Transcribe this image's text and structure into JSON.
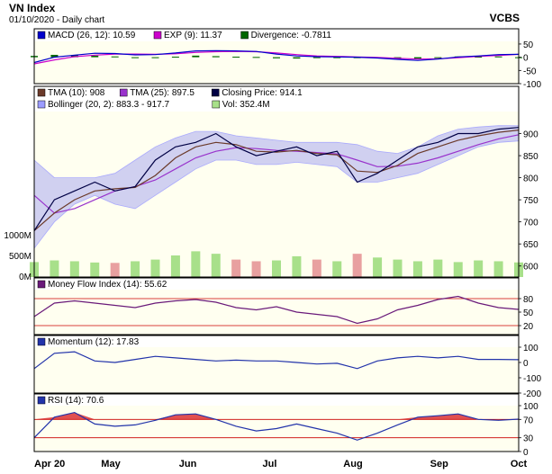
{
  "header": {
    "title": "VN Index",
    "subtitle": "01/10/2020 - Daily chart",
    "brand": "VCBS"
  },
  "colors": {
    "plot_bg": "#fffff0",
    "frame": "#000000",
    "header_bg": "#ffffff",
    "macd": "#0000cc",
    "exp": "#cc00cc",
    "divergence": "#006600",
    "tma10": "#6b3a2a",
    "tma25": "#9933cc",
    "close": "#000044",
    "bollinger_fill": "#c8c8f0",
    "bollinger_line": "#9c9cff",
    "vol_up": "#a8e08a",
    "vol_down": "#e8a0a0",
    "mfi_line": "#6a1a7a",
    "ref_line": "#cc0000",
    "momentum": "#2233aa",
    "rsi_line": "#2233aa",
    "rsi_fill": "#e05050"
  },
  "chart_data": [
    {
      "name": "macd-panel",
      "type": "line",
      "legend": [
        {
          "label": "MACD (26, 12): 10.59",
          "color": "#0000cc"
        },
        {
          "label": "EXP (9): 11.37",
          "color": "#cc00cc"
        },
        {
          "label": "Divergence: -0.7811",
          "color": "#006600"
        }
      ],
      "ylim": [
        -100,
        60
      ],
      "yticks": [
        50,
        0,
        -50,
        -100
      ],
      "series": [
        {
          "name": "MACD",
          "values": [
            -20,
            0,
            8,
            15,
            14,
            9,
            10,
            16,
            24,
            25,
            24,
            22,
            12,
            5,
            2,
            1,
            0,
            -3,
            -8,
            -12,
            -7,
            1,
            5,
            10,
            11
          ]
        },
        {
          "name": "EXP",
          "values": [
            -25,
            -10,
            2,
            8,
            12,
            12,
            11,
            13,
            18,
            21,
            22,
            21,
            16,
            10,
            5,
            3,
            1,
            -1,
            -4,
            -7,
            -6,
            -2,
            3,
            7,
            11
          ]
        }
      ],
      "divergence": [
        5,
        9,
        8,
        6,
        3,
        -1,
        -1,
        2,
        6,
        4,
        2,
        1,
        -4,
        -5,
        -3,
        -2,
        -1,
        -2,
        -4,
        -5,
        -1,
        3,
        2,
        3,
        -1
      ]
    },
    {
      "name": "price-panel",
      "type": "line",
      "legend": [
        {
          "label": "TMA (10): 908",
          "color": "#6b3a2a"
        },
        {
          "label": "TMA (25): 897.5",
          "color": "#9933cc"
        },
        {
          "label": "Closing Price: 914.1",
          "color": "#000044"
        },
        {
          "label": "Bollinger (20, 2): 883.3 - 917.7",
          "color": "#9c9cff"
        },
        {
          "label": "Vol: 352.4M",
          "color": "#a8e08a"
        }
      ],
      "ylim": [
        575,
        950
      ],
      "yticks": [
        900,
        850,
        800,
        750,
        700,
        650,
        600
      ],
      "vol_ticks": [
        "1000M",
        "500M",
        "0M"
      ],
      "vol_max": 1300,
      "series": [
        {
          "name": "Close",
          "values": [
            680,
            750,
            770,
            790,
            770,
            780,
            840,
            870,
            880,
            900,
            870,
            850,
            860,
            870,
            850,
            860,
            790,
            810,
            840,
            870,
            880,
            900,
            900,
            910,
            914
          ]
        },
        {
          "name": "TMA10",
          "values": [
            680,
            720,
            750,
            770,
            775,
            778,
            805,
            845,
            870,
            880,
            875,
            860,
            858,
            862,
            855,
            852,
            815,
            812,
            828,
            855,
            870,
            885,
            895,
            903,
            908
          ]
        },
        {
          "name": "TMA25",
          "values": [
            760,
            720,
            730,
            750,
            770,
            780,
            795,
            820,
            845,
            860,
            868,
            866,
            862,
            860,
            857,
            854,
            840,
            825,
            826,
            833,
            845,
            860,
            875,
            888,
            897.5
          ]
        },
        {
          "name": "BB Upper",
          "values": [
            840,
            800,
            800,
            800,
            810,
            840,
            870,
            890,
            905,
            905,
            895,
            890,
            885,
            880,
            880,
            880,
            875,
            860,
            855,
            870,
            895,
            910,
            915,
            918,
            917.7
          ]
        },
        {
          "name": "BB Lower",
          "values": [
            640,
            700,
            740,
            760,
            740,
            730,
            760,
            790,
            820,
            840,
            840,
            830,
            830,
            835,
            830,
            825,
            790,
            790,
            800,
            810,
            830,
            850,
            870,
            880,
            883.3
          ]
        }
      ],
      "volume": [
        360,
        400,
        380,
        350,
        340,
        380,
        420,
        520,
        620,
        560,
        420,
        380,
        400,
        500,
        420,
        380,
        560,
        470,
        420,
        380,
        420,
        360,
        400,
        380,
        352
      ]
    },
    {
      "name": "mfi-panel",
      "type": "line",
      "legend": [
        {
          "label": "Money Flow Index (14): 55.62",
          "color": "#6a1a7a"
        }
      ],
      "ylim": [
        0,
        100
      ],
      "yticks": [
        80,
        50,
        20
      ],
      "ref": [
        80,
        20
      ],
      "series": [
        {
          "name": "MFI",
          "values": [
            40,
            70,
            75,
            70,
            65,
            60,
            70,
            75,
            78,
            72,
            60,
            55,
            62,
            50,
            45,
            40,
            25,
            35,
            55,
            65,
            78,
            85,
            70,
            60,
            56
          ]
        }
      ]
    },
    {
      "name": "momentum-panel",
      "type": "line",
      "legend": [
        {
          "label": "Momentum (12): 17.83",
          "color": "#2233aa"
        }
      ],
      "ylim": [
        -200,
        100
      ],
      "yticks": [
        100,
        0,
        -100,
        -200
      ],
      "series": [
        {
          "name": "Momentum",
          "values": [
            -40,
            60,
            70,
            10,
            0,
            20,
            40,
            30,
            20,
            10,
            15,
            10,
            10,
            0,
            -10,
            -5,
            -40,
            10,
            30,
            40,
            30,
            40,
            20,
            20,
            18
          ]
        }
      ]
    },
    {
      "name": "rsi-panel",
      "type": "line",
      "legend": [
        {
          "label": "RSI (14): 70.6",
          "color": "#2233aa"
        }
      ],
      "ylim": [
        0,
        100
      ],
      "yticks": [
        100,
        70,
        30,
        0
      ],
      "ref": [
        70,
        30
      ],
      "series": [
        {
          "name": "RSI",
          "values": [
            30,
            75,
            85,
            60,
            55,
            58,
            68,
            80,
            82,
            70,
            55,
            45,
            50,
            60,
            50,
            40,
            25,
            40,
            58,
            75,
            78,
            82,
            70,
            68,
            70.6
          ]
        }
      ]
    }
  ],
  "x_axis": {
    "labels": [
      "Apr 20",
      "May",
      "Jun",
      "Jul",
      "Aug",
      "Sep",
      "Oct"
    ],
    "positions": [
      0,
      0.158,
      0.317,
      0.486,
      0.658,
      0.836,
      1.0
    ]
  }
}
